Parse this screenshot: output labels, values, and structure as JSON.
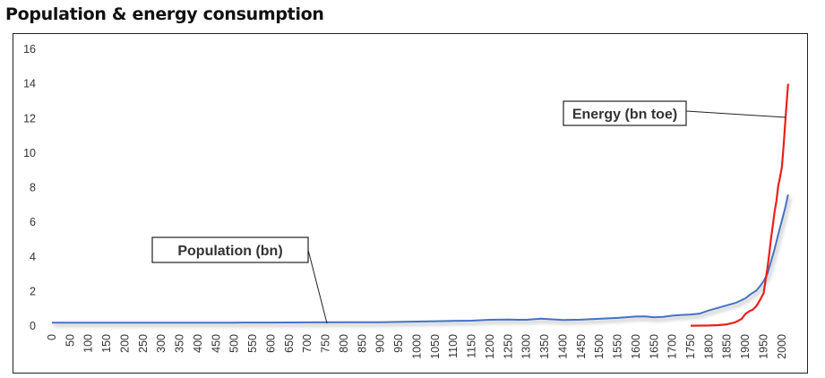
{
  "chart_data": {
    "type": "line",
    "title": "Population & energy consumption",
    "xlabel": "",
    "ylabel": "",
    "xlim": [
      0,
      2020
    ],
    "ylim": [
      0,
      16
    ],
    "y_ticks": [
      "0",
      "2",
      "4",
      "6",
      "8",
      "10",
      "12",
      "14",
      "16"
    ],
    "x_ticks": [
      "0",
      "50",
      "100",
      "150",
      "200",
      "250",
      "300",
      "350",
      "400",
      "450",
      "500",
      "550",
      "600",
      "650",
      "700",
      "750",
      "800",
      "850",
      "900",
      "950",
      "1000",
      "1050",
      "1100",
      "1150",
      "1200",
      "1250",
      "1300",
      "1350",
      "1400",
      "1450",
      "1500",
      "1550",
      "1600",
      "1650",
      "1700",
      "1750",
      "1800",
      "1850",
      "1900",
      "1950",
      "2000"
    ],
    "grid": false,
    "legend": "none",
    "annotations": [
      {
        "label": "Population (bn)",
        "series": "population"
      },
      {
        "label": "Energy (bn toe)",
        "series": "energy"
      }
    ],
    "series": [
      {
        "key": "population",
        "color": "#4472c4",
        "shadow": true,
        "points": [
          [
            0,
            0.19
          ],
          [
            100,
            0.195
          ],
          [
            200,
            0.19
          ],
          [
            300,
            0.19
          ],
          [
            400,
            0.19
          ],
          [
            500,
            0.19
          ],
          [
            525,
            0.2
          ],
          [
            600,
            0.2
          ],
          [
            700,
            0.21
          ],
          [
            800,
            0.22
          ],
          [
            900,
            0.22
          ],
          [
            950,
            0.24
          ],
          [
            1000,
            0.26
          ],
          [
            1100,
            0.3
          ],
          [
            1150,
            0.31
          ],
          [
            1200,
            0.36
          ],
          [
            1250,
            0.38
          ],
          [
            1275,
            0.36
          ],
          [
            1300,
            0.36
          ],
          [
            1340,
            0.43
          ],
          [
            1400,
            0.35
          ],
          [
            1450,
            0.37
          ],
          [
            1500,
            0.42
          ],
          [
            1550,
            0.47
          ],
          [
            1600,
            0.55
          ],
          [
            1625,
            0.56
          ],
          [
            1650,
            0.5
          ],
          [
            1675,
            0.53
          ],
          [
            1700,
            0.6
          ],
          [
            1725,
            0.64
          ],
          [
            1750,
            0.67
          ],
          [
            1775,
            0.72
          ],
          [
            1800,
            0.9
          ],
          [
            1825,
            1.05
          ],
          [
            1850,
            1.2
          ],
          [
            1875,
            1.35
          ],
          [
            1900,
            1.6
          ],
          [
            1915,
            1.85
          ],
          [
            1930,
            2.05
          ],
          [
            1940,
            2.3
          ],
          [
            1950,
            2.6
          ],
          [
            1960,
            3.0
          ],
          [
            1970,
            3.7
          ],
          [
            1980,
            4.45
          ],
          [
            1990,
            5.3
          ],
          [
            2000,
            6.1
          ],
          [
            2010,
            6.9
          ],
          [
            2017,
            7.6
          ]
        ]
      },
      {
        "key": "energy",
        "color": "#e8211b",
        "shadow": false,
        "points": [
          [
            1750,
            0.02
          ],
          [
            1800,
            0.03
          ],
          [
            1825,
            0.05
          ],
          [
            1850,
            0.1
          ],
          [
            1870,
            0.2
          ],
          [
            1880,
            0.3
          ],
          [
            1890,
            0.42
          ],
          [
            1900,
            0.7
          ],
          [
            1910,
            0.85
          ],
          [
            1920,
            0.95
          ],
          [
            1930,
            1.15
          ],
          [
            1940,
            1.5
          ],
          [
            1950,
            1.9
          ],
          [
            1955,
            2.6
          ],
          [
            1960,
            3.3
          ],
          [
            1965,
            4.1
          ],
          [
            1970,
            5.0
          ],
          [
            1975,
            5.8
          ],
          [
            1980,
            6.6
          ],
          [
            1985,
            7.2
          ],
          [
            1990,
            8.1
          ],
          [
            1995,
            8.6
          ],
          [
            2000,
            9.2
          ],
          [
            2005,
            10.5
          ],
          [
            2010,
            12.0
          ],
          [
            2017,
            14.0
          ]
        ]
      }
    ]
  }
}
